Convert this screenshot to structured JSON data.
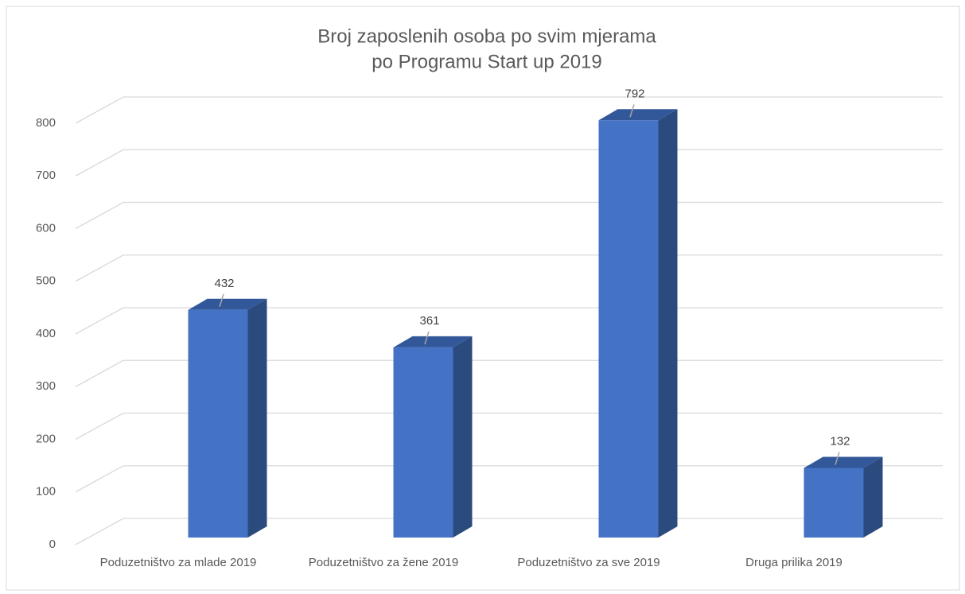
{
  "chart_data": {
    "type": "bar3d",
    "title": [
      "Broj zaposlenih osoba po svim mjerama",
      "po Programu Start up 2019"
    ],
    "categories": [
      "Poduzetništvo za mlade 2019",
      "Poduzetništvo za žene 2019",
      "Poduzetništvo za sve 2019",
      "Druga prilika 2019"
    ],
    "values": [
      432,
      361,
      792,
      132
    ],
    "color": "#4472c4",
    "ylim": [
      0,
      800
    ],
    "yticks": [
      0,
      100,
      200,
      300,
      400,
      500,
      600,
      700,
      800
    ],
    "grid": true
  }
}
